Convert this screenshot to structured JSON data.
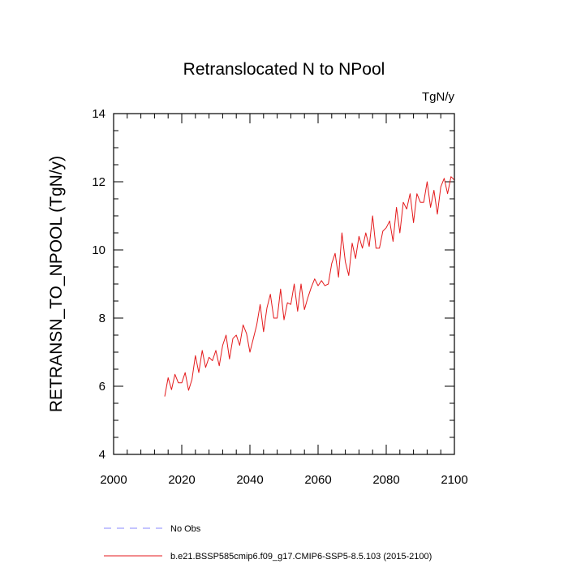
{
  "chart_data": {
    "type": "line",
    "title": "Retranslocated N to NPool",
    "units": "TgN/y",
    "ylabel": "RETRANSN_TO_NPOOL  (TgN/y)",
    "xlabel": "",
    "xlim": [
      2000,
      2100
    ],
    "ylim": [
      4,
      14
    ],
    "xticks": [
      2000,
      2020,
      2040,
      2060,
      2080,
      2100
    ],
    "yticks": [
      4,
      6,
      8,
      10,
      12,
      14
    ],
    "xtick_labels": [
      "2000",
      "2020",
      "2040",
      "2060",
      "2080",
      "2100"
    ],
    "ytick_labels": [
      "4",
      "6",
      "8",
      "10",
      "12",
      "14"
    ],
    "grid": false,
    "legend_position": "bottom-left",
    "series": [
      {
        "name": "b.e21.BSSP585cmip6.f09_g17.CMIP6-SSP5-8.5.103 (2015-2100)",
        "color": "#e41a1c",
        "style": "solid",
        "x": [
          2015,
          2016,
          2017,
          2018,
          2019,
          2020,
          2021,
          2022,
          2023,
          2024,
          2025,
          2026,
          2027,
          2028,
          2029,
          2030,
          2031,
          2032,
          2033,
          2034,
          2035,
          2036,
          2037,
          2038,
          2039,
          2040,
          2041,
          2042,
          2043,
          2044,
          2045,
          2046,
          2047,
          2048,
          2049,
          2050,
          2051,
          2052,
          2053,
          2054,
          2055,
          2056,
          2057,
          2058,
          2059,
          2060,
          2061,
          2062,
          2063,
          2064,
          2065,
          2066,
          2067,
          2068,
          2069,
          2070,
          2071,
          2072,
          2073,
          2074,
          2075,
          2076,
          2077,
          2078,
          2079,
          2080,
          2081,
          2082,
          2083,
          2084,
          2085,
          2086,
          2087,
          2088,
          2089,
          2090,
          2091,
          2092,
          2093,
          2094,
          2095,
          2096,
          2097,
          2098,
          2099,
          2100
        ],
        "y": [
          5.7,
          6.25,
          5.9,
          6.35,
          6.1,
          6.1,
          6.4,
          5.88,
          6.2,
          6.9,
          6.4,
          7.05,
          6.55,
          6.85,
          6.75,
          7.05,
          6.6,
          7.2,
          7.5,
          6.8,
          7.4,
          7.5,
          7.2,
          7.8,
          7.55,
          7.0,
          7.4,
          7.8,
          8.4,
          7.6,
          8.3,
          8.7,
          8.0,
          8.0,
          8.85,
          7.95,
          8.45,
          8.4,
          9.0,
          8.2,
          9.0,
          8.25,
          8.6,
          8.9,
          9.15,
          8.95,
          9.1,
          8.95,
          9.0,
          9.6,
          9.9,
          9.2,
          10.5,
          9.65,
          9.25,
          10.2,
          9.75,
          10.4,
          10.05,
          10.5,
          10.1,
          11.0,
          10.05,
          10.05,
          10.55,
          10.65,
          10.85,
          10.25,
          11.25,
          10.5,
          11.4,
          11.2,
          11.65,
          10.8,
          11.65,
          11.4,
          11.4,
          12.0,
          11.25,
          11.75,
          11.05,
          11.85,
          12.1,
          11.65,
          12.15,
          12.05
        ]
      }
    ],
    "legend": [
      {
        "label": "No Obs",
        "color": "#8a8aff",
        "style": "dashed"
      },
      {
        "label": "b.e21.BSSP585cmip6.f09_g17.CMIP6-SSP5-8.5.103 (2015-2100)",
        "color": "#e41a1c",
        "style": "solid"
      }
    ]
  }
}
